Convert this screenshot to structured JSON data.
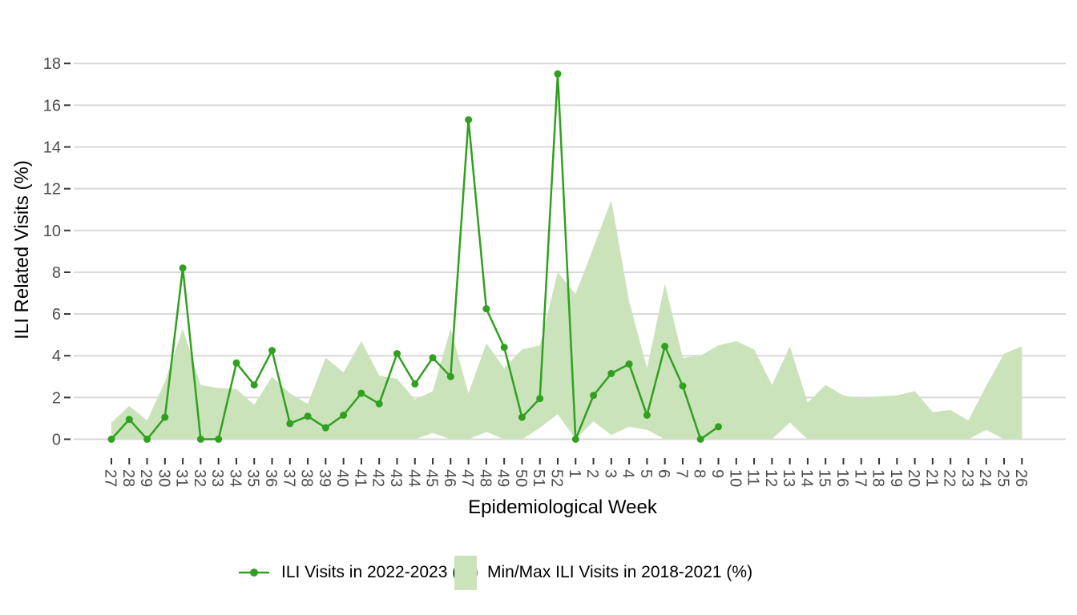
{
  "chart_data": {
    "type": "line",
    "title": "",
    "xlabel": "Epidemiological Week",
    "ylabel": "ILI Related Visits (%)",
    "ylim": [
      0,
      18
    ],
    "yticks": [
      0,
      2,
      4,
      6,
      8,
      10,
      12,
      14,
      16,
      18
    ],
    "grid": "horizontal-major-only",
    "legend_position": "bottom",
    "categories": [
      "27",
      "28",
      "29",
      "30",
      "31",
      "32",
      "33",
      "34",
      "35",
      "36",
      "37",
      "38",
      "39",
      "40",
      "41",
      "42",
      "43",
      "44",
      "45",
      "46",
      "47",
      "48",
      "49",
      "50",
      "51",
      "52",
      "1",
      "2",
      "3",
      "4",
      "5",
      "6",
      "7",
      "8",
      "9",
      "10",
      "11",
      "12",
      "13",
      "14",
      "15",
      "16",
      "17",
      "18",
      "19",
      "20",
      "21",
      "22",
      "23",
      "24",
      "25",
      "26"
    ],
    "series": [
      {
        "name": "ILI Visits in 2022-2023 (%)",
        "kind": "line-with-markers",
        "values": [
          0,
          0.95,
          0,
          1.05,
          8.2,
          0,
          0,
          3.65,
          2.6,
          4.25,
          0.75,
          1.1,
          0.55,
          1.15,
          2.2,
          1.7,
          4.1,
          2.65,
          3.9,
          3.0,
          15.3,
          6.25,
          4.4,
          1.05,
          1.95,
          17.5,
          0,
          2.1,
          3.15,
          3.6,
          1.15,
          4.45,
          2.55,
          0,
          0.6,
          null,
          null,
          null,
          null,
          null,
          null,
          null,
          null,
          null,
          null,
          null,
          null,
          null,
          null,
          null,
          null,
          null
        ]
      },
      {
        "name": "Min/Max ILI Visits in 2018-2021 (%)",
        "kind": "band",
        "max": [
          0.8,
          1.6,
          0.9,
          2.75,
          5.3,
          2.6,
          2.45,
          2.4,
          1.65,
          3.0,
          2.2,
          1.7,
          3.9,
          3.2,
          4.7,
          3.05,
          2.9,
          1.9,
          2.3,
          5.3,
          2.2,
          4.6,
          3.4,
          4.3,
          4.5,
          8.0,
          6.95,
          9.2,
          11.45,
          6.6,
          3.4,
          7.45,
          3.9,
          4.0,
          4.5,
          4.7,
          4.3,
          2.6,
          4.45,
          1.75,
          2.6,
          2.1,
          1.95,
          2.05,
          2.1,
          2.3,
          1.3,
          1.4,
          0.9,
          2.55,
          4.1,
          4.45
        ],
        "min": [
          0,
          0,
          0,
          0,
          0,
          0,
          0,
          0,
          0,
          0,
          0,
          0,
          0,
          0,
          0,
          0,
          0,
          0,
          0.3,
          0,
          0,
          0.35,
          0,
          0,
          0.55,
          1.2,
          0,
          0.85,
          0.2,
          0.6,
          0.45,
          0,
          0,
          0,
          0,
          0,
          0,
          0,
          0.8,
          0,
          0,
          0,
          0,
          0,
          0,
          0,
          0,
          0,
          0,
          0.45,
          0,
          0
        ]
      }
    ],
    "colors": {
      "line": "#30a01f",
      "band": "#cae3bb",
      "grid": "#d9d9d9",
      "tick_mark": "#333333",
      "tick_text": "#4d4d4d",
      "axis_title_text": "#000000",
      "background": "#ffffff"
    }
  }
}
